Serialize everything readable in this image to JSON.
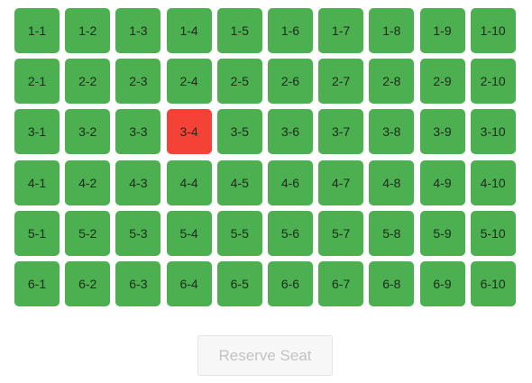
{
  "seats": {
    "rows": [
      [
        {
          "label": "1-1",
          "status": "available"
        },
        {
          "label": "1-2",
          "status": "available"
        },
        {
          "label": "1-3",
          "status": "available"
        },
        {
          "label": "1-4",
          "status": "available"
        },
        {
          "label": "1-5",
          "status": "available"
        },
        {
          "label": "1-6",
          "status": "available"
        },
        {
          "label": "1-7",
          "status": "available"
        },
        {
          "label": "1-8",
          "status": "available"
        },
        {
          "label": "1-9",
          "status": "available"
        },
        {
          "label": "1-10",
          "status": "available"
        }
      ],
      [
        {
          "label": "2-1",
          "status": "available"
        },
        {
          "label": "2-2",
          "status": "available"
        },
        {
          "label": "2-3",
          "status": "available"
        },
        {
          "label": "2-4",
          "status": "available"
        },
        {
          "label": "2-5",
          "status": "available"
        },
        {
          "label": "2-6",
          "status": "available"
        },
        {
          "label": "2-7",
          "status": "available"
        },
        {
          "label": "2-8",
          "status": "available"
        },
        {
          "label": "2-9",
          "status": "available"
        },
        {
          "label": "2-10",
          "status": "available"
        }
      ],
      [
        {
          "label": "3-1",
          "status": "available"
        },
        {
          "label": "3-2",
          "status": "available"
        },
        {
          "label": "3-3",
          "status": "available"
        },
        {
          "label": "3-4",
          "status": "reserved"
        },
        {
          "label": "3-5",
          "status": "available"
        },
        {
          "label": "3-6",
          "status": "available"
        },
        {
          "label": "3-7",
          "status": "available"
        },
        {
          "label": "3-8",
          "status": "available"
        },
        {
          "label": "3-9",
          "status": "available"
        },
        {
          "label": "3-10",
          "status": "available"
        }
      ],
      [
        {
          "label": "4-1",
          "status": "available"
        },
        {
          "label": "4-2",
          "status": "available"
        },
        {
          "label": "4-3",
          "status": "available"
        },
        {
          "label": "4-4",
          "status": "available"
        },
        {
          "label": "4-5",
          "status": "available"
        },
        {
          "label": "4-6",
          "status": "available"
        },
        {
          "label": "4-7",
          "status": "available"
        },
        {
          "label": "4-8",
          "status": "available"
        },
        {
          "label": "4-9",
          "status": "available"
        },
        {
          "label": "4-10",
          "status": "available"
        }
      ],
      [
        {
          "label": "5-1",
          "status": "available"
        },
        {
          "label": "5-2",
          "status": "available"
        },
        {
          "label": "5-3",
          "status": "available"
        },
        {
          "label": "5-4",
          "status": "available"
        },
        {
          "label": "5-5",
          "status": "available"
        },
        {
          "label": "5-6",
          "status": "available"
        },
        {
          "label": "5-7",
          "status": "available"
        },
        {
          "label": "5-8",
          "status": "available"
        },
        {
          "label": "5-9",
          "status": "available"
        },
        {
          "label": "5-10",
          "status": "available"
        }
      ],
      [
        {
          "label": "6-1",
          "status": "available"
        },
        {
          "label": "6-2",
          "status": "available"
        },
        {
          "label": "6-3",
          "status": "available"
        },
        {
          "label": "6-4",
          "status": "available"
        },
        {
          "label": "6-5",
          "status": "available"
        },
        {
          "label": "6-6",
          "status": "available"
        },
        {
          "label": "6-7",
          "status": "available"
        },
        {
          "label": "6-8",
          "status": "available"
        },
        {
          "label": "6-9",
          "status": "available"
        },
        {
          "label": "6-10",
          "status": "available"
        }
      ]
    ]
  },
  "colors": {
    "available": "#4caf50",
    "reserved": "#f44336"
  },
  "reserve_button": {
    "label": "Reserve Seat",
    "disabled": true
  }
}
